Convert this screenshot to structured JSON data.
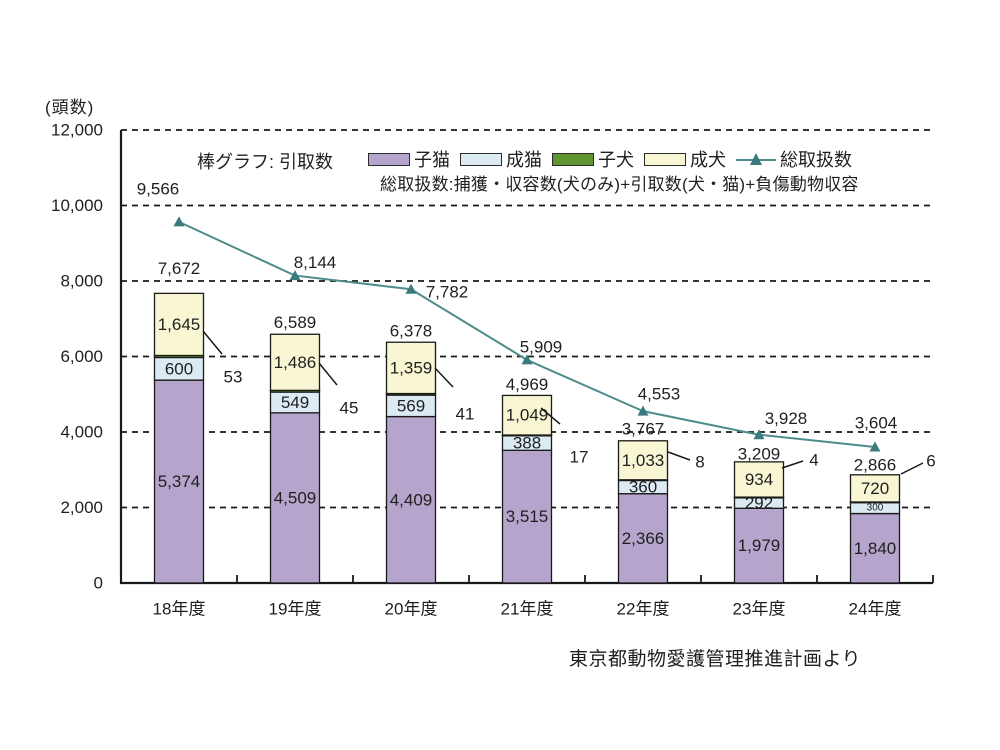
{
  "colors": {
    "kitten": "#b5a4cb",
    "adult_cat": "#dcebf3",
    "puppy": "#5f9632",
    "adult_dog": "#f9f6d3",
    "total_line": "#4e8c8c",
    "total_marker": "#3a7a7e",
    "axis": "#1a1a1a",
    "text": "#1f1f1f"
  },
  "legend": {
    "bar_note": "棒グラフ: 引取数",
    "items": [
      {
        "label": "子猫",
        "swatch": "rect",
        "color": "#b5a4cb"
      },
      {
        "label": "成猫",
        "swatch": "rect",
        "color": "#dcebf3"
      },
      {
        "label": "子犬",
        "swatch": "rect",
        "color": "#5f9632"
      },
      {
        "label": "成犬",
        "swatch": "rect",
        "color": "#f9f6d3"
      },
      {
        "label": "総取扱数",
        "swatch": "line-triangle",
        "color": "#4e8c8c"
      }
    ],
    "line_note": "総取扱数:捕獲・収容数(犬のみ)+引取数(犬・猫)+負傷動物収容"
  },
  "caption": "東京都動物愛護管理推進計画より",
  "chart_data": {
    "type": "bar",
    "subtype": "stacked-bar-with-line",
    "title": "",
    "unit_label": "(頭数)",
    "xlabel": "",
    "ylabel": "頭数",
    "ylim": [
      0,
      12000
    ],
    "y_tick_interval": 2000,
    "y_tick_labels": [
      "0",
      "2,000",
      "4,000",
      "6,000",
      "8,000",
      "10,000",
      "12,000"
    ],
    "grid": "dashed-horizontal",
    "legend_position": "top-inside",
    "categories": [
      "18年度",
      "19年度",
      "20年度",
      "21年度",
      "22年度",
      "23年度",
      "24年度"
    ],
    "series": [
      {
        "name": "子猫",
        "type": "bar-segment",
        "values": [
          5374,
          4509,
          4409,
          3515,
          2366,
          1979,
          1840
        ],
        "labels": [
          "5,374",
          "4,509",
          "4,409",
          "3,515",
          "2,366",
          "1,979",
          "1,840"
        ],
        "label_placement": "inside"
      },
      {
        "name": "成猫",
        "type": "bar-segment",
        "values": [
          600,
          549,
          569,
          388,
          360,
          292,
          300
        ],
        "labels": [
          "600",
          "549",
          "569",
          "388",
          "360",
          "292",
          "300"
        ],
        "label_placement": "inside"
      },
      {
        "name": "子犬",
        "type": "bar-segment",
        "values": [
          53,
          45,
          41,
          17,
          8,
          4,
          6
        ],
        "labels": [
          "53",
          "45",
          "41",
          "17",
          "8",
          "4",
          "6"
        ],
        "label_placement": "outside-callout"
      },
      {
        "name": "成犬",
        "type": "bar-segment",
        "values": [
          1645,
          1486,
          1359,
          1049,
          1033,
          934,
          720
        ],
        "labels": [
          "1,645",
          "1,486",
          "1,359",
          "1,049",
          "1,033",
          "934",
          "720"
        ],
        "label_placement": "inside"
      },
      {
        "name": "総取扱数",
        "type": "line",
        "values": [
          9566,
          8144,
          7782,
          5909,
          4553,
          3928,
          3604
        ],
        "labels": [
          "9,566",
          "8,144",
          "7,782",
          "5,909",
          "4,553",
          "3,928",
          "3,604"
        ],
        "marker": "triangle"
      }
    ],
    "bar_totals": {
      "values": [
        7672,
        6589,
        6378,
        4969,
        3767,
        3209,
        2866
      ],
      "labels": [
        "7,672",
        "6,589",
        "6,378",
        "4,969",
        "3,767",
        "3,209",
        "2,866"
      ]
    }
  }
}
